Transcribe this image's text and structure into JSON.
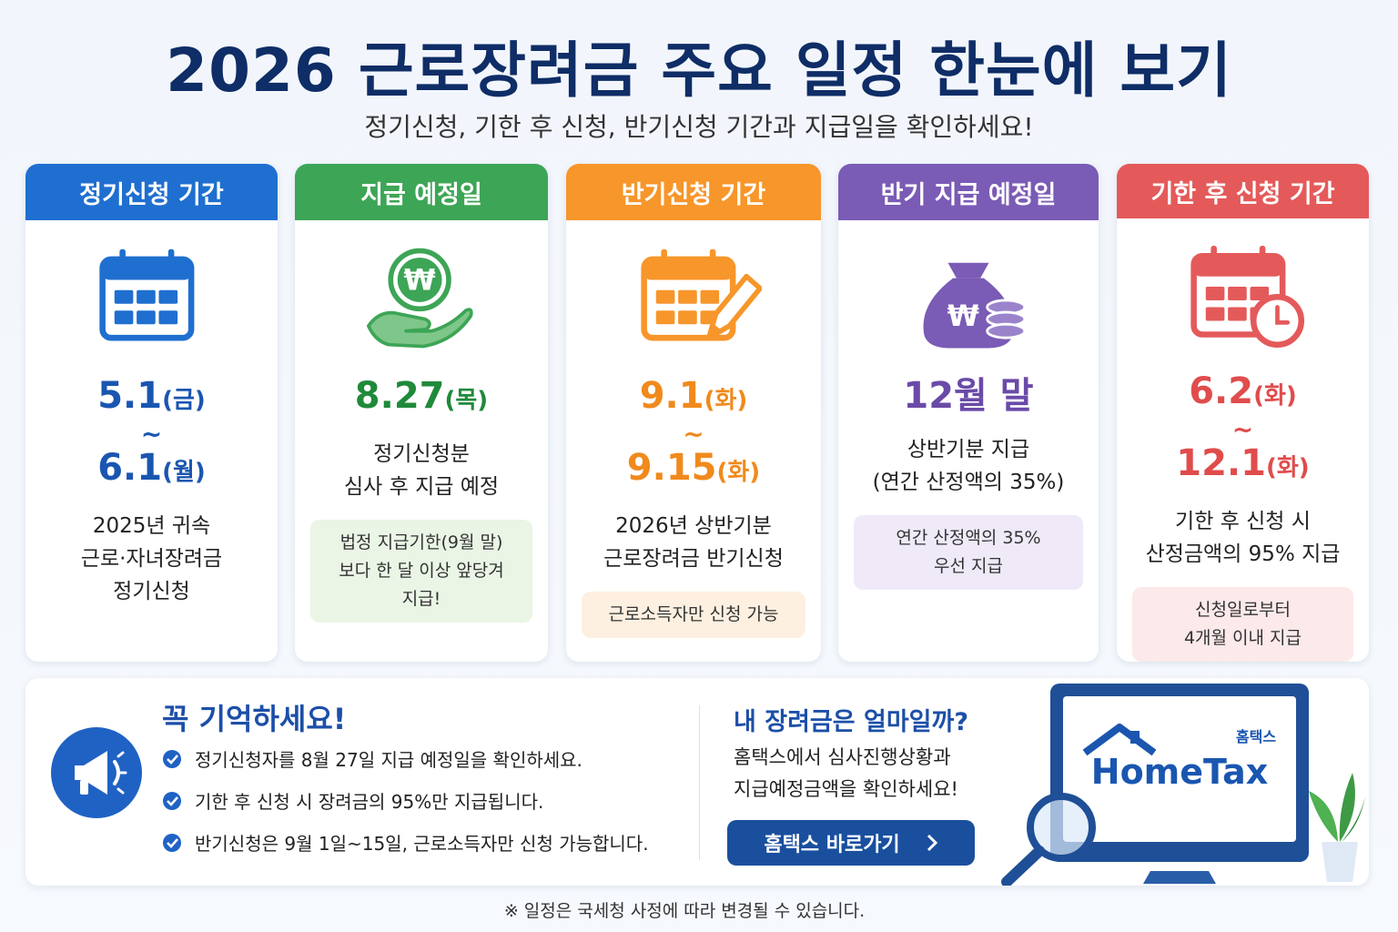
{
  "header": {
    "title": "2026 근로장려금 주요 일정 한눈에 보기",
    "subtitle": "정기신청, 기한 후 신청, 반기신청 기간과 지급일을 확인하세요!"
  },
  "cards": [
    {
      "title": "정기신청 기간",
      "start": {
        "date": "5.1",
        "day": "(금)"
      },
      "separator": "~",
      "end": {
        "date": "6.1",
        "day": "(월)"
      },
      "description": [
        "2025년 귀속",
        "근로·자녀장려금",
        "정기신청"
      ]
    },
    {
      "title": "지급 예정일",
      "icon_text": "₩",
      "start": {
        "date": "8.27",
        "day": "(목)"
      },
      "description": [
        "정기신청분",
        "심사 후 지급 예정"
      ],
      "note": [
        "법정 지급기한(9월 말)",
        "보다 한 달 이상 앞당겨",
        "지급!"
      ]
    },
    {
      "title": "반기신청 기간",
      "start": {
        "date": "9.1",
        "day": "(화)"
      },
      "separator": "~",
      "end": {
        "date": "9.15",
        "day": "(화)"
      },
      "description": [
        "2026년 상반기분",
        "근로장려금 반기신청"
      ],
      "note": [
        "근로소득자만 신청 가능"
      ]
    },
    {
      "title": "반기 지급 예정일",
      "icon_text": "₩",
      "start": {
        "date": "12월 말"
      },
      "description": [
        "상반기분 지급",
        "(연간 산정액의 35%)"
      ],
      "note": [
        "연간 산정액의 35%",
        "우선 지급"
      ]
    },
    {
      "title": "기한 후 신청 기간",
      "start": {
        "date": "6.2",
        "day": "(화)"
      },
      "separator": "~",
      "end": {
        "date": "12.1",
        "day": "(화)"
      },
      "description": [
        "기한 후 신청 시",
        "산정금액의 95% 지급"
      ],
      "note": [
        "신청일로부터",
        "4개월 이내 지급"
      ]
    }
  ],
  "remember": {
    "title": "꼭 기억하세요!",
    "items": [
      "정기신청자를 8월 27일 지급 예정일을 확인하세요.",
      "기한 후 신청 시 장려금의 95%만 지급됩니다.",
      "반기신청은 9월 1일~15일, 근로소득자만 신청 가능합니다."
    ]
  },
  "hometax": {
    "title": "내 장려금은 얼마일까?",
    "text": [
      "홈택스에서 심사진행상황과",
      "지급예정금액을 확인하세요!"
    ],
    "button": "홈택스 바로가기",
    "logo_small": "홈택스",
    "logo": "HomeTax"
  },
  "footer": "※ 일정은 국세청 사정에 따라 변경될 수 있습니다."
}
